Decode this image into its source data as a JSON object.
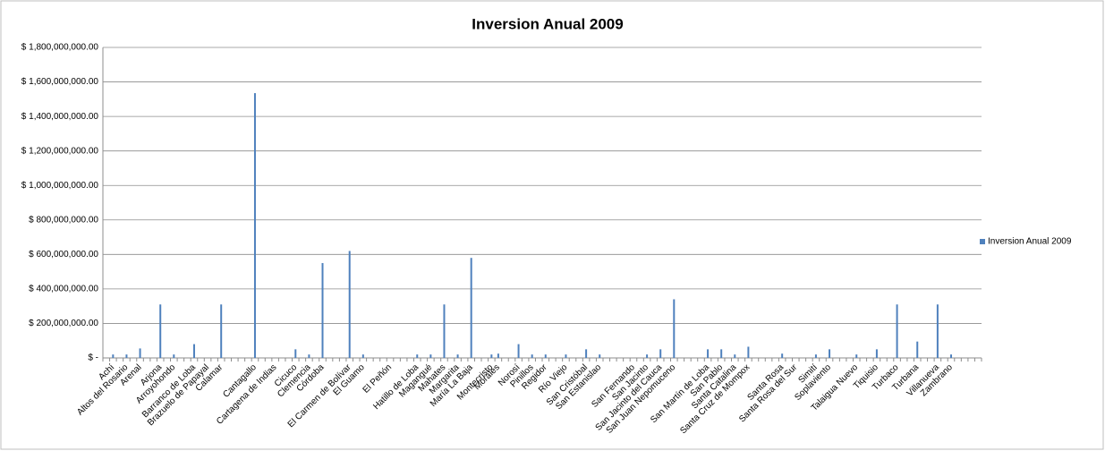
{
  "chart_data": {
    "type": "bar",
    "title": "Inversion Anual 2009",
    "categories": [
      null,
      "Achí",
      null,
      "Altos del Rosario",
      null,
      "Arenal",
      null,
      null,
      "Arjona",
      null,
      "Arroyohondo",
      null,
      null,
      "Barranco de Loba",
      null,
      "Brazuelo de Papayal",
      null,
      "Calamar",
      null,
      null,
      null,
      null,
      "Cantagallo",
      null,
      null,
      "Cartagena de Indias",
      null,
      null,
      "Cicuco",
      null,
      "Clemencia",
      null,
      "Córdoba",
      null,
      null,
      null,
      "El Carmen de Bolívar",
      null,
      "El Guamo",
      null,
      null,
      null,
      "El Peñón",
      null,
      null,
      null,
      "Hatillo de Loba",
      null,
      "Magangué",
      null,
      "Mahates",
      null,
      "Margarita",
      null,
      "María La Baja",
      null,
      null,
      "Montecristo",
      "Morales",
      null,
      null,
      "Norosí",
      null,
      "Pinillos",
      null,
      "Regidor",
      null,
      null,
      "Río Viejo",
      null,
      null,
      "San Cristóbal",
      null,
      "San Estanislao",
      null,
      null,
      null,
      null,
      "San Fernando",
      null,
      "San Jacinto",
      null,
      "San Jacinto del Cauca",
      null,
      "San Juan Nepomuceno",
      null,
      null,
      null,
      null,
      "San Martín de Loba",
      null,
      "San Pablo",
      null,
      "Santa Catalina",
      null,
      "Santa Cruz de Mompox",
      null,
      null,
      null,
      null,
      "Santa Rosa",
      null,
      "Santa Rosa del Sur",
      null,
      null,
      "Simití",
      null,
      "Soplaviento",
      null,
      null,
      null,
      "Talaigua Nuevo",
      null,
      null,
      "Tiquisio",
      null,
      null,
      "Turbaco",
      null,
      null,
      "Turbana",
      null,
      null,
      "Villanueva",
      null,
      "Zambrano",
      null,
      null,
      null,
      null
    ],
    "series": [
      {
        "name": "Inversion Anual 2009",
        "color": "#4f81bd",
        "values": [
          null,
          20000000,
          null,
          20000000,
          null,
          55000000,
          null,
          null,
          310000000,
          null,
          20000000,
          null,
          null,
          80000000,
          null,
          null,
          null,
          310000000,
          null,
          null,
          null,
          null,
          1535000000,
          null,
          null,
          null,
          null,
          null,
          50000000,
          null,
          20000000,
          null,
          550000000,
          null,
          null,
          null,
          620000000,
          null,
          20000000,
          null,
          null,
          null,
          null,
          null,
          null,
          null,
          20000000,
          null,
          20000000,
          null,
          310000000,
          null,
          20000000,
          null,
          580000000,
          null,
          null,
          20000000,
          25000000,
          null,
          null,
          80000000,
          null,
          20000000,
          null,
          20000000,
          null,
          null,
          20000000,
          null,
          null,
          50000000,
          null,
          20000000,
          null,
          null,
          null,
          null,
          null,
          null,
          20000000,
          null,
          50000000,
          null,
          340000000,
          null,
          null,
          null,
          null,
          50000000,
          null,
          50000000,
          null,
          20000000,
          null,
          65000000,
          null,
          null,
          null,
          null,
          25000000,
          null,
          null,
          null,
          null,
          20000000,
          null,
          50000000,
          null,
          null,
          null,
          20000000,
          null,
          null,
          50000000,
          null,
          null,
          310000000,
          null,
          null,
          95000000,
          null,
          null,
          310000000,
          null,
          20000000,
          null,
          null,
          null,
          null
        ]
      }
    ],
    "ylim": [
      0,
      1800000000
    ],
    "yticks": [
      {
        "value": 0,
        "label": "$ -"
      },
      {
        "value": 200000000,
        "label": "$ 200,000,000.00"
      },
      {
        "value": 400000000,
        "label": "$ 400,000,000.00"
      },
      {
        "value": 600000000,
        "label": "$ 600,000,000.00"
      },
      {
        "value": 800000000,
        "label": "$ 800,000,000.00"
      },
      {
        "value": 1000000000,
        "label": "$ 1,000,000,000.00"
      },
      {
        "value": 1200000000,
        "label": "$ 1,200,000,000.00"
      },
      {
        "value": 1400000000,
        "label": "$ 1,400,000,000.00"
      },
      {
        "value": 1600000000,
        "label": "$ 1,600,000,000.00"
      },
      {
        "value": 1800000000,
        "label": "$ 1,800,000,000.00"
      }
    ],
    "grid": true,
    "legend": "right"
  }
}
